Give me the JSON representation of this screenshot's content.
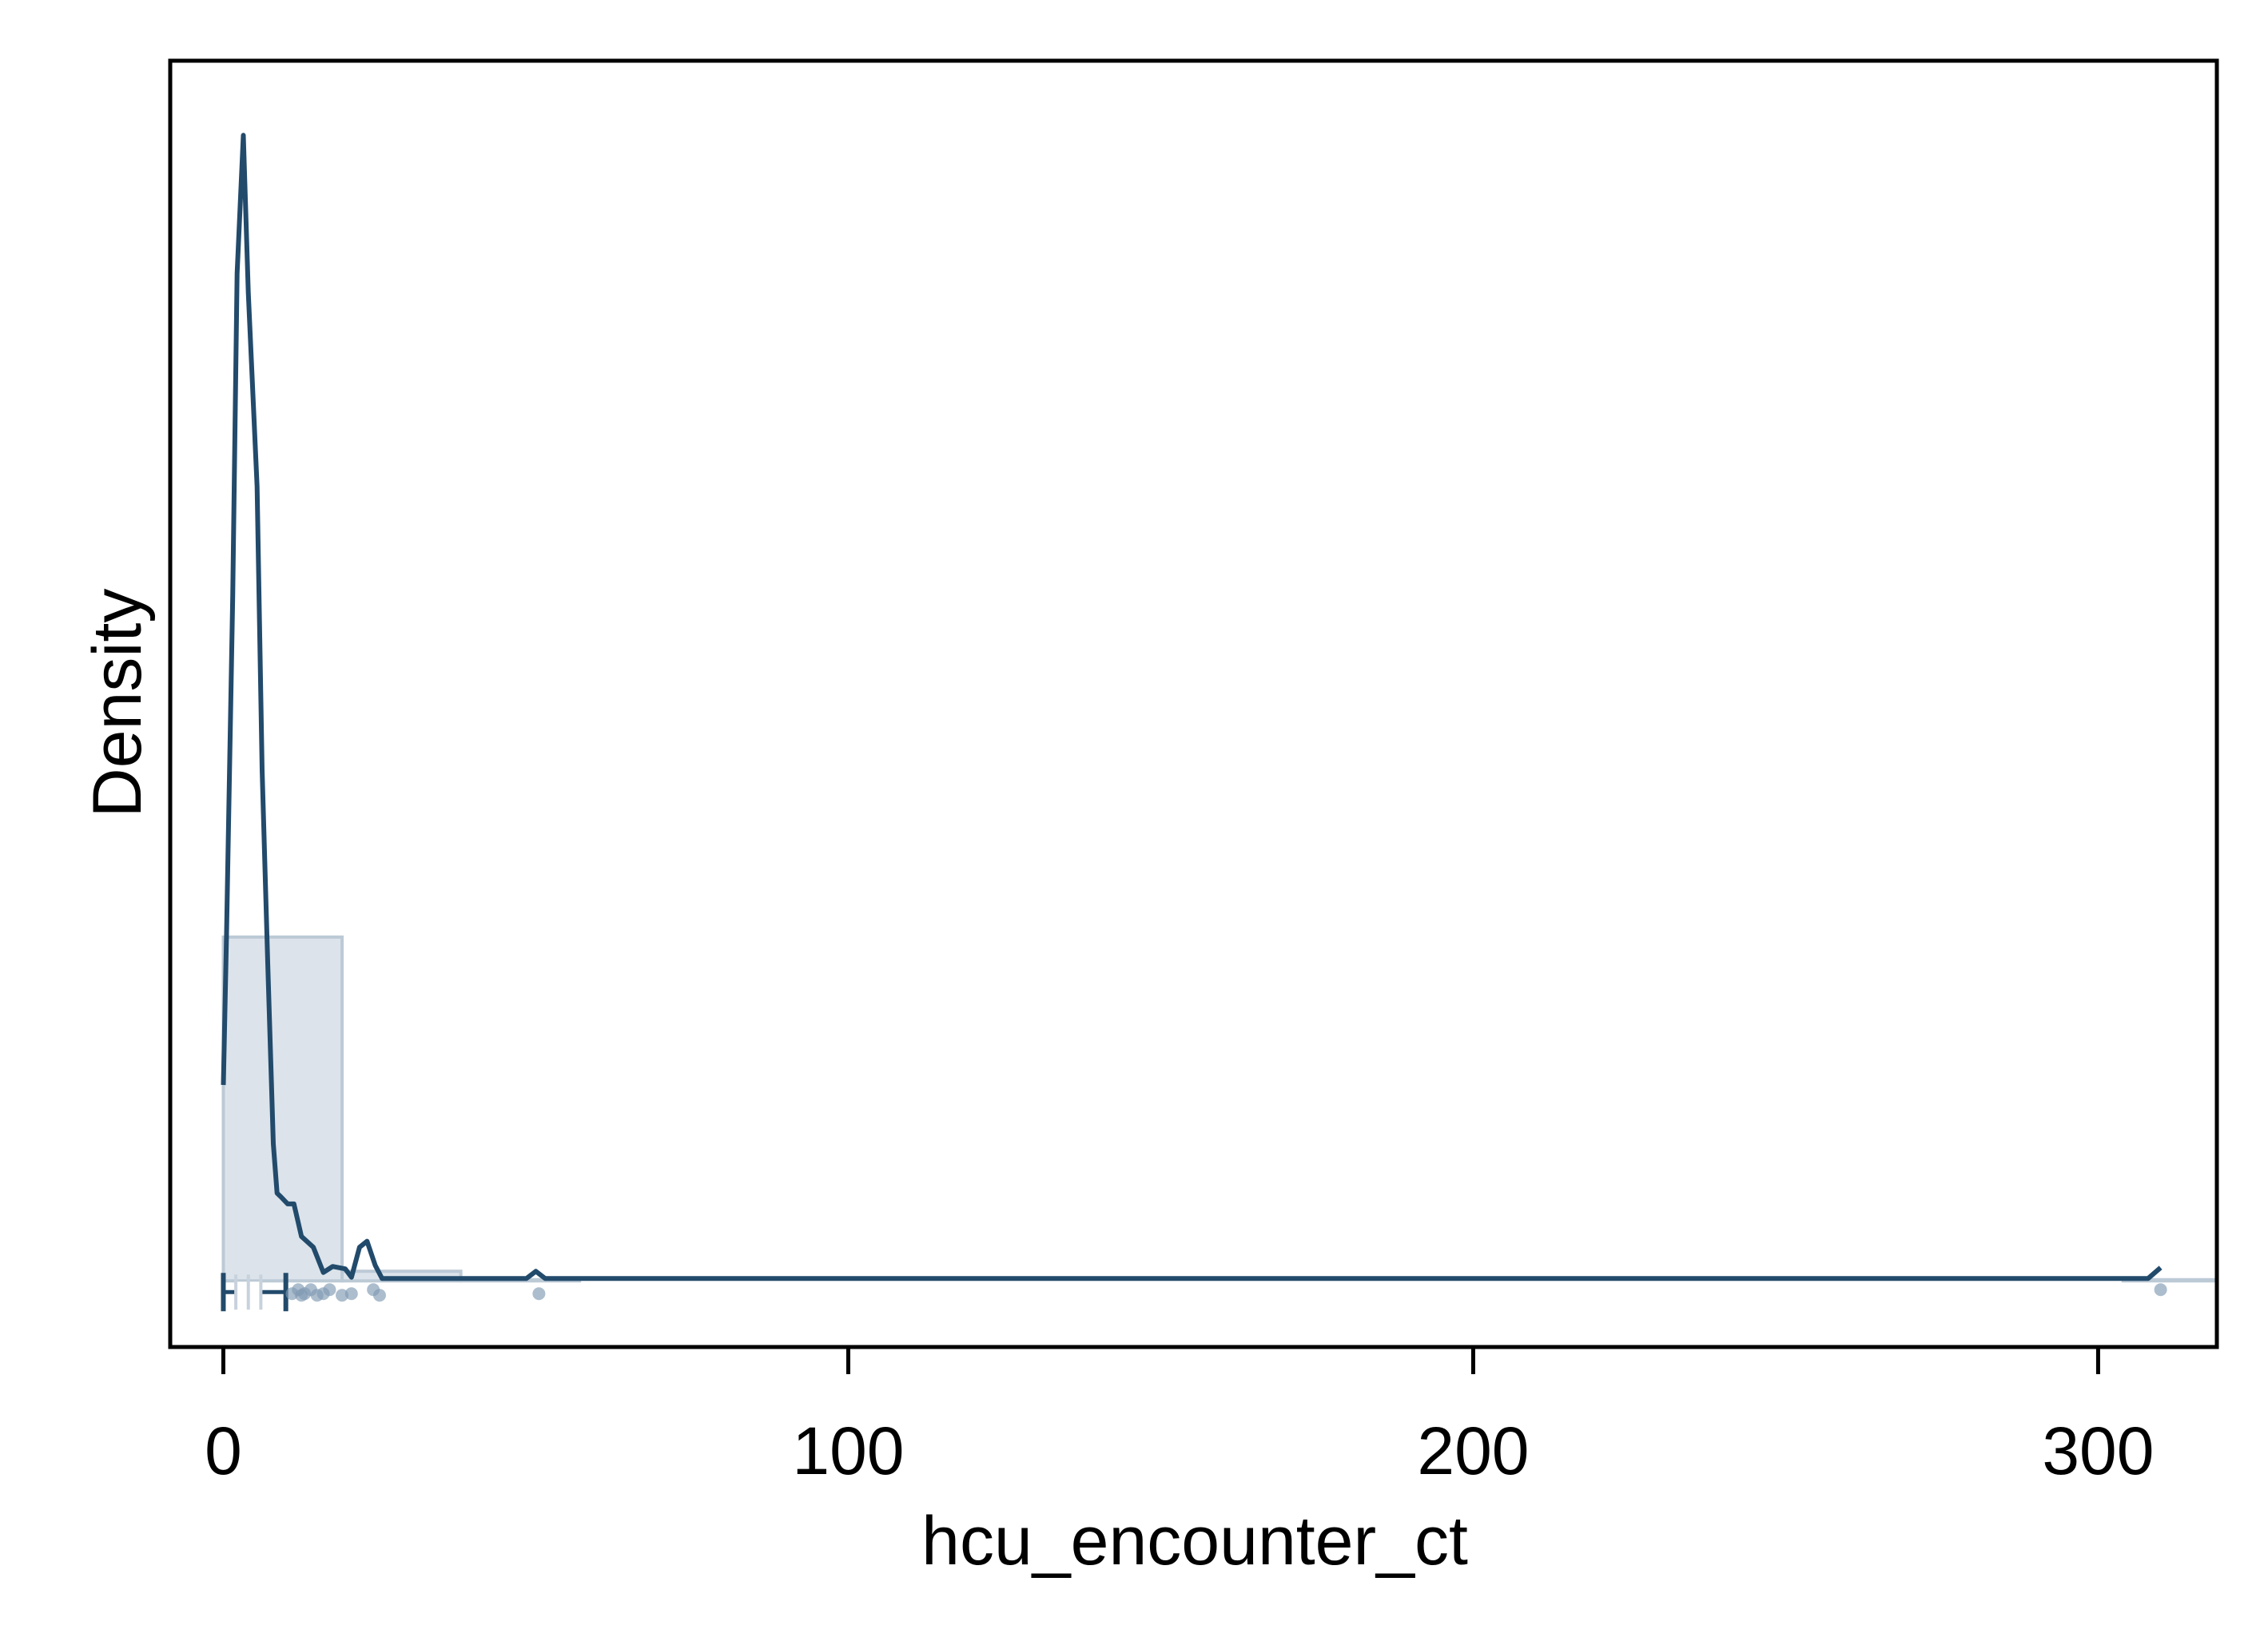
{
  "chart_data": {
    "type": "area",
    "title": "",
    "xlabel": "hcu_encounter_ct",
    "ylabel": "Density",
    "xlim": [
      -8.5,
      319
    ],
    "ylim": [
      -0.0055,
      0.1015
    ],
    "x_ticks": [
      0,
      100,
      200,
      300
    ],
    "x_tick_labels": [
      "0",
      "100",
      "200",
      "300"
    ],
    "y_tick_labels": [],
    "grid": false,
    "legend": "none",
    "colors": {
      "line": "#224a6b",
      "bar_fill": "#dce3ea",
      "bar_stroke": "#bccad6",
      "point": "#7f99b2",
      "frame": "#000000"
    },
    "histogram": {
      "bins": [
        {
          "x0": 0,
          "x1": 19,
          "density": 0.0286
        },
        {
          "x0": 19,
          "x1": 38,
          "density": 0.0008
        },
        {
          "x0": 38,
          "x1": 57,
          "density": 0.0001
        },
        {
          "x0": 57,
          "x1": 76,
          "density": 0
        },
        {
          "x0": 76,
          "x1": 95,
          "density": 0
        },
        {
          "x0": 95,
          "x1": 114,
          "density": 0
        },
        {
          "x0": 114,
          "x1": 133,
          "density": 0
        },
        {
          "x0": 133,
          "x1": 152,
          "density": 0
        },
        {
          "x0": 152,
          "x1": 171,
          "density": 0
        },
        {
          "x0": 171,
          "x1": 190,
          "density": 0
        },
        {
          "x0": 190,
          "x1": 209,
          "density": 0
        },
        {
          "x0": 209,
          "x1": 228,
          "density": 0
        },
        {
          "x0": 228,
          "x1": 247,
          "density": 0
        },
        {
          "x0": 247,
          "x1": 266,
          "density": 0
        },
        {
          "x0": 266,
          "x1": 285,
          "density": 0
        },
        {
          "x0": 285,
          "x1": 304,
          "density": 0
        },
        {
          "x0": 304,
          "x1": 323,
          "density": 0.0001
        }
      ]
    },
    "series": [
      {
        "x": [
          0,
          0.5,
          1.5,
          2.2,
          3.2,
          4,
          5.4,
          6.2,
          7.1,
          8,
          8.6,
          9.2,
          10.3,
          11.3,
          12.5,
          14.4,
          16,
          17.5,
          19.5,
          20.5,
          21.8,
          23,
          24.3,
          25.4,
          27.3,
          30,
          40,
          48.5,
          50,
          51.5,
          55,
          60,
          100,
          200,
          300,
          308,
          310
        ],
        "y": [
          0.0163,
          0.0286,
          0.0569,
          0.0838,
          0.0953,
          0.0822,
          0.0661,
          0.0425,
          0.0265,
          0.0114,
          0.0073,
          0.007,
          0.0064,
          0.0064,
          0.0037,
          0.0028,
          0.0007,
          0.0012,
          0.001,
          0.0003,
          0.0028,
          0.0033,
          0.0013,
          0.0002,
          0.0002,
          0.0002,
          0.0002,
          0.0002,
          0.0008,
          0.0002,
          0.0002,
          0.0002,
          0.0002,
          0.0002,
          0.0002,
          0.0002,
          0.0011
        ]
      }
    ],
    "box": {
      "min": 0,
      "q1": 2,
      "median": 4,
      "q3": 6,
      "whisker_high": 10
    },
    "outliers": [
      11,
      12,
      12.5,
      13,
      14,
      15,
      16,
      17,
      19,
      20.5,
      24,
      25,
      50.5,
      310
    ]
  }
}
